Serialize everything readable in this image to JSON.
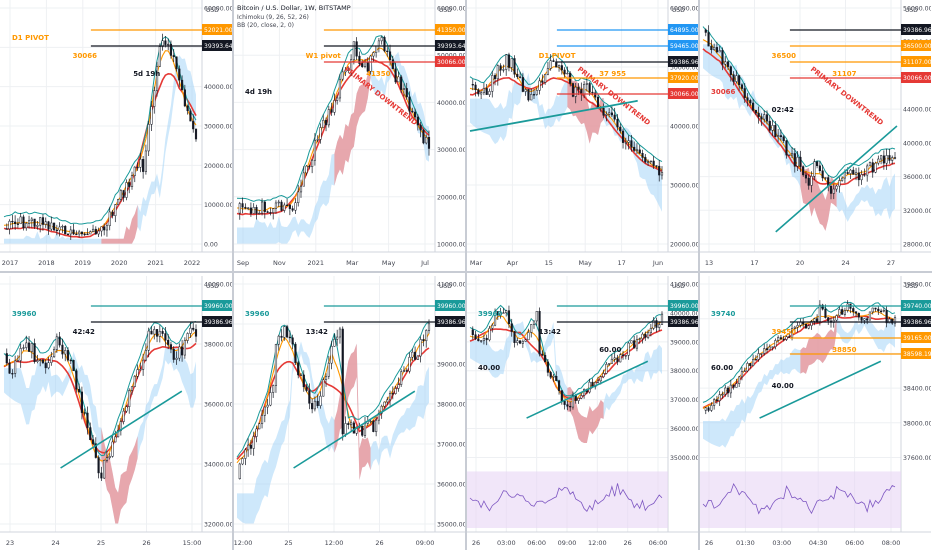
{
  "layout_note": "",
  "colors": {
    "bull": "#ffffff",
    "bear": "#131722",
    "wick": "#131722",
    "teal": "#1a9a9a",
    "red": "#e53935",
    "orange": "#ff9800",
    "blue_line": "#2196f3",
    "cloud_green": "#a5d6f7",
    "cloud_red": "#f28b8b",
    "price_tag": "#131722",
    "rsi_band": "#e8d5f5",
    "rsi_line": "#7e57c2"
  },
  "panels": [
    {
      "id": "p1",
      "timeframe": "1M",
      "chart_data": {
        "type": "candlestick",
        "x_ticks": [
          "2017",
          "2018",
          "2019",
          "2020",
          "2021",
          "2022"
        ],
        "y_ticks": [
          "60000.00",
          "50000.00",
          "40000.00",
          "30000.00",
          "20000.00",
          "10000.00",
          "0.00"
        ],
        "y_unit": "USD",
        "annotations": [
          {
            "text": "D1 PIVOT",
            "color": "orange"
          },
          {
            "text": "30066",
            "color": "orange"
          },
          {
            "text": "52021.00",
            "color": "orange"
          },
          {
            "text": "39393.64",
            "color": "dark"
          },
          {
            "text": "5d 19h",
            "color": "dark"
          }
        ]
      }
    },
    {
      "id": "p2",
      "timeframe": "1W",
      "header": {
        "line1": "Bitcoin / U.S. Dollar, 1W, BITSTAMP",
        "line2": "Ichimoku (9, 26, 52, 26)",
        "line3": "BB (20, close, 2, 0)"
      },
      "chart_data": {
        "type": "candlestick",
        "x_ticks": [
          "Sep",
          "Nov",
          "2021",
          "Mar",
          "May",
          "Jul"
        ],
        "y_ticks": [
          "60000.00",
          "50000.00",
          "40000.00",
          "30000.00",
          "20000.00",
          "10000.00"
        ],
        "y_unit": "USD",
        "annotations": [
          {
            "text": "PRIMARY DOWNTREND",
            "color": "red"
          },
          {
            "text": "W1 pivot",
            "color": "orange"
          },
          {
            "text": "41350",
            "color": "orange"
          },
          {
            "text": "41350.00",
            "color": "orange"
          },
          {
            "text": "39393.64",
            "color": "dark"
          },
          {
            "text": "4d 19h",
            "color": "dark"
          },
          {
            "text": "30066.00",
            "color": "red"
          }
        ]
      }
    },
    {
      "id": "p3",
      "timeframe": "1D",
      "chart_data": {
        "type": "candlestick",
        "x_ticks": [
          "Mar",
          "Apr",
          "15",
          "May",
          "17",
          "Jun"
        ],
        "y_ticks": [
          "60000.00",
          "50000.00",
          "40000.00",
          "30000.00",
          "20000.00"
        ],
        "y_unit": "USD",
        "annotations": [
          {
            "text": "PRIMARY DOWNTREND",
            "color": "red"
          },
          {
            "text": "D1 PIVOT",
            "color": "orange"
          },
          {
            "text": "37 955",
            "color": "orange"
          },
          {
            "text": "64895.00",
            "color": "blue"
          },
          {
            "text": "59465.00",
            "color": "blue"
          },
          {
            "text": "39386.96",
            "color": "dark"
          },
          {
            "text": "37920.00",
            "color": "orange"
          },
          {
            "text": "30066.00",
            "color": "red"
          }
        ]
      }
    },
    {
      "id": "p4",
      "timeframe": "4H",
      "chart_data": {
        "type": "candlestick",
        "x_ticks": [
          "13",
          "17",
          "20",
          "24",
          "27"
        ],
        "y_ticks": [
          "56000.00",
          "52000.00",
          "48000.00",
          "44000.00",
          "40000.00",
          "36000.00",
          "32000.00",
          "28000.00"
        ],
        "y_unit": "USD",
        "annotations": [
          {
            "text": "PRIMARY DOWNTREND",
            "color": "red"
          },
          {
            "text": "36500",
            "color": "orange"
          },
          {
            "text": "31107",
            "color": "orange"
          },
          {
            "text": "30066",
            "color": "red"
          },
          {
            "text": "39386.96",
            "color": "dark"
          },
          {
            "text": "02:42",
            "color": "dark"
          },
          {
            "text": "36500.00",
            "color": "orange"
          },
          {
            "text": "31107.00",
            "color": "orange"
          },
          {
            "text": "30066.00",
            "color": "red"
          }
        ]
      }
    },
    {
      "id": "p5",
      "timeframe": "1H",
      "chart_data": {
        "type": "candlestick",
        "x_ticks": [
          "23",
          "24",
          "25",
          "26",
          "15:00"
        ],
        "y_ticks": [
          "40000.00",
          "38000.00",
          "36000.00",
          "34000.00",
          "32000.00"
        ],
        "y_unit": "USD",
        "annotations": [
          {
            "text": "39960",
            "color": "teal"
          },
          {
            "text": "39960.00",
            "color": "teal"
          },
          {
            "text": "39386.96",
            "color": "dark"
          },
          {
            "text": "42:42",
            "color": "dark"
          }
        ]
      }
    },
    {
      "id": "p6",
      "timeframe": "15m",
      "chart_data": {
        "type": "candlestick",
        "x_ticks": [
          "12:00",
          "25",
          "12:00",
          "26",
          "09:00"
        ],
        "y_ticks": [
          "41000.00",
          "40000.00",
          "39000.00",
          "38000.00",
          "37000.00",
          "36000.00",
          "35000.00"
        ],
        "y_unit": "USD",
        "annotations": [
          {
            "text": "39960",
            "color": "teal"
          },
          {
            "text": "39960.00",
            "color": "teal"
          },
          {
            "text": "39386.96",
            "color": "dark"
          },
          {
            "text": "13:42",
            "color": "dark"
          }
        ]
      }
    },
    {
      "id": "p7",
      "timeframe": "5m",
      "chart_data": {
        "type": "candlestick",
        "x_ticks": [
          "26",
          "03:00",
          "06:00",
          "09:00",
          "12:00",
          "26",
          "06:00"
        ],
        "y_ticks": [
          "41000.00",
          "40000.00",
          "39000.00",
          "38000.00",
          "37000.00",
          "36000.00",
          "35000.00"
        ],
        "y_unit": "USD",
        "annotations": [
          {
            "text": "39960",
            "color": "teal"
          },
          {
            "text": "39960.00",
            "color": "teal"
          },
          {
            "text": "39386.96",
            "color": "dark"
          },
          {
            "text": "13:42",
            "color": "dark"
          },
          {
            "text": "60.00",
            "color": "dark"
          },
          {
            "text": "40.00",
            "color": "dark"
          }
        ]
      }
    },
    {
      "id": "p8",
      "timeframe": "1m",
      "chart_data": {
        "type": "candlestick",
        "x_ticks": [
          "26",
          "01:30",
          "03:00",
          "04:30",
          "06:00",
          "08:00"
        ],
        "y_ticks": [
          "39800.00",
          "39600.00",
          "39000.00",
          "38400.00",
          "38000.00",
          "37600.00"
        ],
        "y_unit": "USD",
        "annotations": [
          {
            "text": "39740",
            "color": "teal"
          },
          {
            "text": "39740.00",
            "color": "teal"
          },
          {
            "text": "39450",
            "color": "orange"
          },
          {
            "text": "39386.96",
            "color": "dark"
          },
          {
            "text": "39165.00",
            "color": "orange"
          },
          {
            "text": "38598.19",
            "color": "orange"
          },
          {
            "text": "38850",
            "color": "orange"
          },
          {
            "text": "60.00",
            "color": "dark"
          },
          {
            "text": "40.00",
            "color": "dark"
          }
        ]
      }
    }
  ]
}
